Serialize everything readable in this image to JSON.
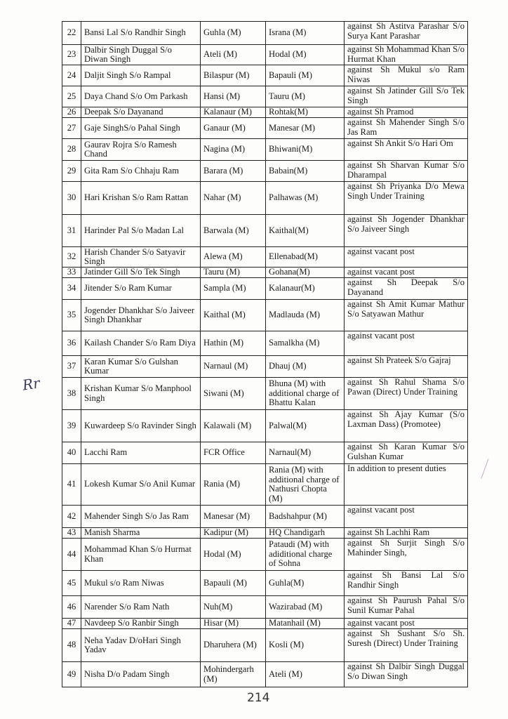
{
  "rows": [
    {
      "sn": "22",
      "name": "Bansi Lal S/o Randhir Singh",
      "from": "Guhla (M)",
      "to": "Israna (M)",
      "remarks": "against Sh Astitva Parashar S/o Surya Kant Parashar"
    },
    {
      "sn": "23",
      "name": "Dalbir Singh Duggal S/o Diwan Singh",
      "from": "Ateli (M)",
      "to": "Hodal (M)",
      "remarks": "against Sh Mohammad Khan S/o Hurmat Khan"
    },
    {
      "sn": "24",
      "name": "Daljit Singh S/o Rampal",
      "from": "Bilaspur (M)",
      "to": "Bapauli (M)",
      "remarks": "against Sh Mukul s/o Ram Niwas"
    },
    {
      "sn": "25",
      "name": "Daya Chand S/o Om Parkash",
      "from": "Hansi (M)",
      "to": "Tauru (M)",
      "remarks": "against Sh Jatinder Gill S/o Tek Singh"
    },
    {
      "sn": "26",
      "name": "Deepak S/o Dayanand",
      "from": "Kalanaur (M)",
      "to": "Rohtak(M)",
      "remarks": "against Sh Pramod"
    },
    {
      "sn": "27",
      "name": "Gaje SinghS/o Pahal Singh",
      "from": "Ganaur (M)",
      "to": "Manesar (M)",
      "remarks": "against Sh Mahender Singh S/o Jas Ram"
    },
    {
      "sn": "28",
      "name": "Gaurav Rojra S/o Ramesh Chand",
      "from": "Nagina (M)",
      "to": "Bhiwani(M)",
      "remarks": "against Sh Ankit S/o Hari Om"
    },
    {
      "sn": "29",
      "name": "Gita Ram S/o Chhaju Ram",
      "from": "Barara (M)",
      "to": "Babain(M)",
      "remarks": "against Sh Sharvan Kumar S/o Dharampal"
    },
    {
      "sn": "30",
      "name": "Hari Krishan S/o Ram Rattan",
      "from": "Nahar (M)",
      "to": "Palhawas (M)",
      "remarks": "against Sh Priyanka D/o Mewa Singh Under Training"
    },
    {
      "sn": "31",
      "name": "Harinder Pal S/o Madan Lal",
      "from": "Barwala (M)",
      "to": "Kaithal(M)",
      "remarks": "against Sh Jogender Dhankhar S/o Jaiveer Singh"
    },
    {
      "sn": "32",
      "name": "Harish Chander S/o Satyavir Singh",
      "from": "Alewa (M)",
      "to": "Ellenabad(M)",
      "remarks": "against vacant post"
    },
    {
      "sn": "33",
      "name": "Jatinder Gill S/o Tek Singh",
      "from": "Tauru (M)",
      "to": "Gohana(M)",
      "remarks": "against vacant post"
    },
    {
      "sn": "34",
      "name": "Jitender S/o Ram Kumar",
      "from": "Sampla (M)",
      "to": "Kalanaur(M)",
      "remarks": "against Sh Deepak S/o Dayanand"
    },
    {
      "sn": "35",
      "name": "Jogender Dhankhar S/o Jaiveer Singh Dhankhar",
      "from": "Kaithal (M)",
      "to": "Madlauda (M)",
      "remarks": "against Sh Amit Kumar Mathur S/o Satyawan Mathur"
    },
    {
      "sn": "36",
      "name": "Kailash Chander S/o Ram Diya",
      "from": "Hathin (M)",
      "to": "Samalkha (M)",
      "remarks": "against vacant post"
    },
    {
      "sn": "37",
      "name": "Karan Kumar S/o Gulshan Kumar",
      "from": "Narnaul (M)",
      "to": "Dhauj (M)",
      "remarks": "against Sh Prateek S/o Gajraj"
    },
    {
      "sn": "38",
      "name": "Krishan Kumar S/o Manphool Singh",
      "from": "Siwani (M)",
      "to": "Bhuna (M) with additional charge of Bhattu Kalan",
      "remarks": "against Sh Rahul Shama S/o Pawan (Direct) Under Training"
    },
    {
      "sn": "39",
      "name": "Kuwardeep S/o Ravinder Singh",
      "from": "Kalawali (M)",
      "to": "Palwal(M)",
      "remarks": "against Sh Ajay Kumar (S/o Laxman Dass) (Promotee)"
    },
    {
      "sn": "40",
      "name": "Lacchi Ram",
      "from": "FCR Office",
      "to": "Narnaul(M)",
      "remarks": "against Sh Karan Kumar S/o Gulshan Kumar"
    },
    {
      "sn": "41",
      "name": "Lokesh Kumar S/o Anil Kumar",
      "from": "Rania (M)",
      "to": "Rania (M) with additional charge of Nathusri Chopta (M)",
      "remarks": "In addition to present duties"
    },
    {
      "sn": "42",
      "name": "Mahender Singh S/o Jas Ram",
      "from": "Manesar (M)",
      "to": "Badshahpur (M)",
      "remarks": "against vacant post"
    },
    {
      "sn": "43",
      "name": "Manish Sharma",
      "from": "Kadipur (M)",
      "to": "HQ Chandigarh",
      "remarks": "against Sh Lachhi Ram"
    },
    {
      "sn": "44",
      "name": "Mohammad Khan S/o Hurmat Khan",
      "from": "Hodal (M)",
      "to": "Pataudi (M) with adiditional charge of Sohna",
      "remarks": "against Sh Surjit Singh S/o Mahinder Singh,"
    },
    {
      "sn": "45",
      "name": "Mukul s/o Ram Niwas",
      "from": "Bapauli (M)",
      "to": "Guhla(M)",
      "remarks": "against Sh Bansi Lal S/o Randhir Singh"
    },
    {
      "sn": "46",
      "name": "Narender S/o Ram Nath",
      "from": "Nuh(M)",
      "to": "Wazirabad (M)",
      "remarks": "against Sh Paurush Pahal S/o Sunil Kumar Pahal"
    },
    {
      "sn": "47",
      "name": "Navdeep S/o Ranbir Singh",
      "from": "Hisar (M)",
      "to": "Matanhail (M)",
      "remarks": "against vacant post"
    },
    {
      "sn": "48",
      "name": "Neha Yadav D/oHari Singh Yadav",
      "from": "Dharuhera (M)",
      "to": "Kosli (M)",
      "remarks": "against Sh Sushant S/o Sh. Suresh (Direct) Under Training"
    },
    {
      "sn": "49",
      "name": "Nisha D/o Padam Singh",
      "from": "Mohindergarh (M)",
      "to": "Ateli (M)",
      "remarks": "against Sh Dalbir Singh Duggal S/o Diwan Singh"
    }
  ],
  "page_number": "214",
  "margin_mark": "Rr"
}
